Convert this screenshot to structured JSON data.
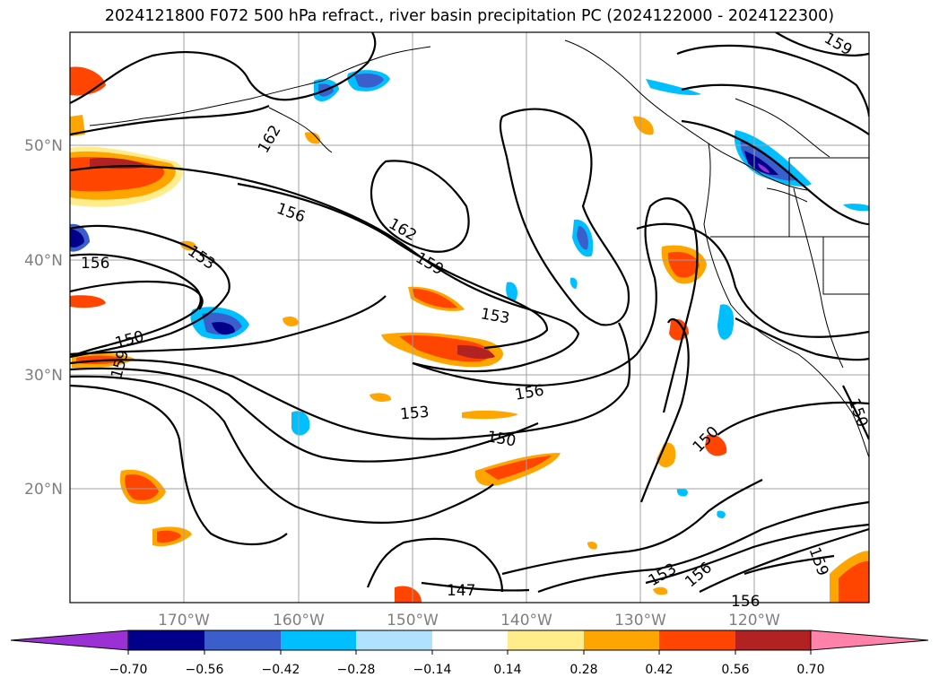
{
  "title": "2024121800 F072 500 hPa refract., river basin precipitation PC (2024122000 - 2024122300)",
  "map": {
    "lat_labels": [
      "50°N",
      "40°N",
      "30°N",
      "20°N"
    ],
    "lon_labels": [
      "170°W",
      "160°W",
      "150°W",
      "140°W",
      "130°W",
      "120°W"
    ]
  },
  "contour_labels": [
    "162",
    "156",
    "162",
    "159",
    "153",
    "156",
    "153",
    "150",
    "159",
    "156",
    "153",
    "150",
    "150",
    "147",
    "153",
    "156",
    "159",
    "159",
    "156",
    "150"
  ],
  "colorbar": {
    "colors": [
      "#9b30d4",
      "#00008b",
      "#3a5fcd",
      "#00bfff",
      "#b0e2ff",
      "#ffffff",
      "#ffec8b",
      "#ffa500",
      "#ff4500",
      "#b22222",
      "#ff82ab"
    ],
    "ticks": [
      "−0.70",
      "−0.56",
      "−0.42",
      "−0.28",
      "−0.14",
      "0.14",
      "0.28",
      "0.42",
      "0.56",
      "0.70"
    ]
  }
}
